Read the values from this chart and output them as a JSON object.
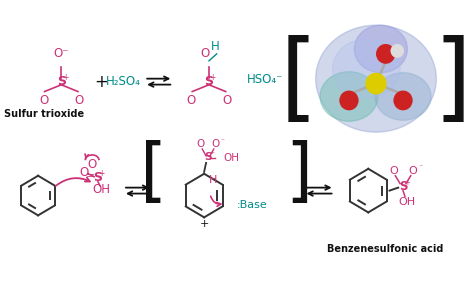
{
  "bg_color": "#ffffff",
  "pink": "#cc3377",
  "teal": "#008b8b",
  "black": "#111111",
  "dark": "#333333",
  "sulfur_trioxide_label": "Sulfur trioxide",
  "benzenesulfonic_label": "Benzenesulfonic acid",
  "hso4_label": "HSO₄⁻",
  "h2so4_label": "H₂SO₄",
  "base_label": ":Base",
  "figsize": [
    4.74,
    2.96
  ],
  "dpi": 100
}
